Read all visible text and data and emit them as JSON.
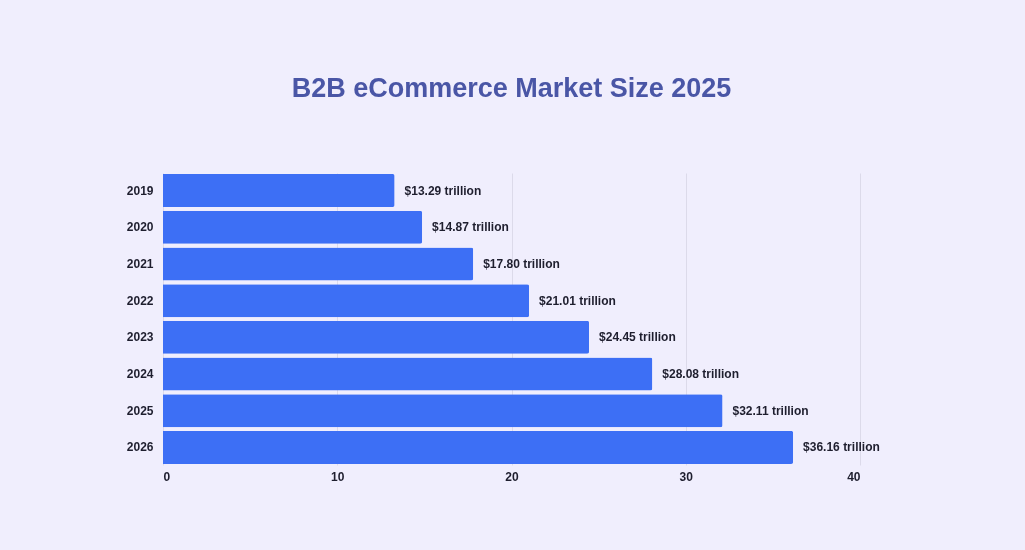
{
  "chart_data": {
    "type": "bar",
    "orientation": "horizontal",
    "title": "B2B eCommerce Market Size 2025",
    "categories": [
      "2019",
      "2020",
      "2021",
      "2022",
      "2023",
      "2024",
      "2025",
      "2026"
    ],
    "values": [
      13.29,
      14.87,
      17.8,
      21.01,
      24.45,
      28.08,
      32.11,
      36.16
    ],
    "color": "#3d6ff5",
    "value_labels": [
      "$13.29 trillion",
      "$14.87 trillion",
      "$17.80 trillion",
      "$21.01 trillion",
      "$24.45 trillion",
      "$28.08 trillion",
      "$32.11 trillion",
      "$36.16 trillion"
    ],
    "xlim": [
      0,
      40
    ],
    "xticks": [
      0,
      10,
      20,
      30,
      40
    ],
    "grid": "x"
  }
}
